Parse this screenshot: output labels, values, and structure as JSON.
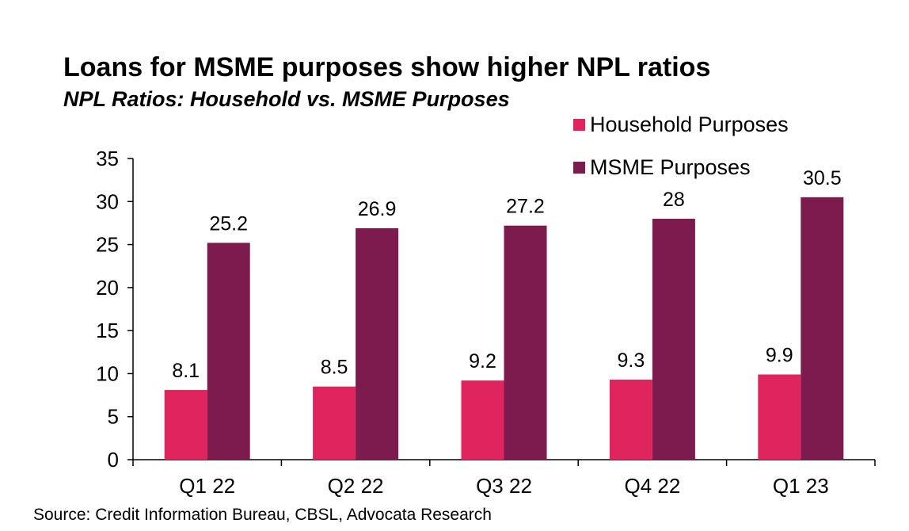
{
  "title": "Loans for MSME purposes show higher NPL ratios",
  "subtitle": "NPL Ratios: Household vs. MSME Purposes",
  "source": "Source: Credit Information Bureau, CBSL, Advocata Research",
  "chart_data": {
    "type": "bar",
    "categories": [
      "Q1 22",
      "Q2 22",
      "Q3 22",
      "Q4 22",
      "Q1 23"
    ],
    "series": [
      {
        "name": "Household Purposes",
        "color": "#E0245E",
        "values": [
          8.1,
          8.5,
          9.2,
          9.3,
          9.9
        ],
        "labels": [
          "8.1",
          "8.5",
          "9.2",
          "9.3",
          "9.9"
        ]
      },
      {
        "name": "MSME Purposes",
        "color": "#7D1A4E",
        "values": [
          25.2,
          26.9,
          27.2,
          28,
          30.5
        ],
        "labels": [
          "25.2",
          "26.9",
          "27.2",
          "28",
          "30.5"
        ]
      }
    ],
    "ylim": [
      0,
      35
    ],
    "yticks": [
      "0",
      "5",
      "10",
      "15",
      "20",
      "25",
      "30",
      "35"
    ],
    "grid": false,
    "legend_position": "top-right",
    "xlabel": "",
    "ylabel": ""
  }
}
